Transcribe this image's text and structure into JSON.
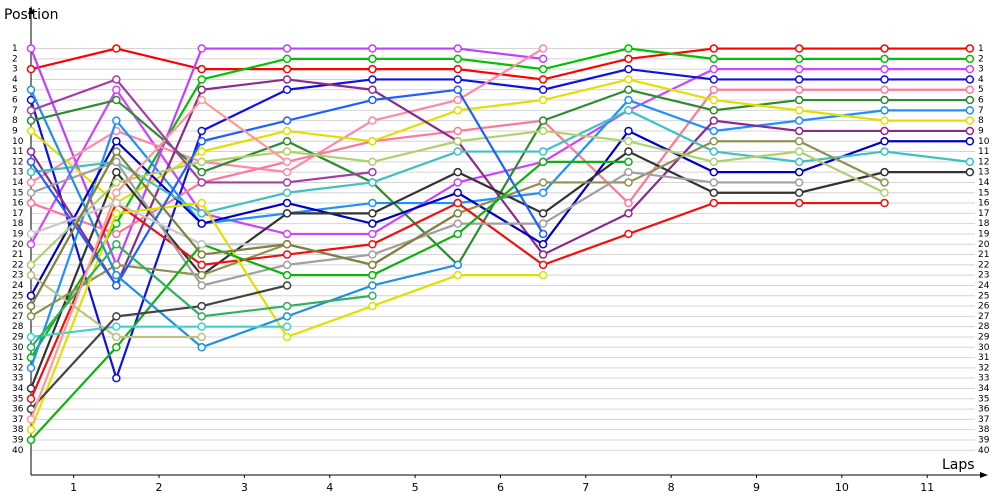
{
  "chart_data": {
    "type": "line",
    "y_label": "Position",
    "x_label": "Laps",
    "x": [
      0,
      1,
      2,
      3,
      4,
      5,
      6,
      7,
      8,
      9,
      10,
      11
    ],
    "xlim": [
      0,
      11.06
    ],
    "xticks": [
      {
        "value": 0.5,
        "label": "1"
      },
      {
        "value": 1.5,
        "label": "2"
      },
      {
        "value": 2.5,
        "label": "3"
      },
      {
        "value": 3.5,
        "label": "4"
      },
      {
        "value": 4.5,
        "label": "5"
      },
      {
        "value": 5.5,
        "label": "6"
      },
      {
        "value": 6.5,
        "label": "7"
      },
      {
        "value": 7.5,
        "label": "8"
      },
      {
        "value": 8.5,
        "label": "9"
      },
      {
        "value": 9.5,
        "label": "10"
      },
      {
        "value": 10.5,
        "label": "11"
      }
    ],
    "ylim": [
      -0.8,
      42.4
    ],
    "yticks": [
      1,
      2,
      3,
      4,
      5,
      6,
      7,
      8,
      9,
      10,
      11,
      12,
      13,
      14,
      15,
      16,
      17,
      18,
      19,
      20,
      21,
      22,
      23,
      24,
      25,
      26,
      27,
      28,
      29,
      30,
      31,
      32,
      33,
      34,
      35,
      36,
      37,
      38,
      39,
      40
    ],
    "grid": true,
    "series": [
      {
        "color": "#ff0000",
        "values": [
          3,
          1,
          3,
          3,
          3,
          3,
          4,
          2,
          1,
          1,
          1,
          1
        ]
      },
      {
        "color": "#00c000",
        "values": [
          31,
          18,
          4,
          2,
          2,
          2,
          3,
          1,
          2,
          2,
          2,
          2
        ]
      },
      {
        "color": "#c040ff",
        "values": [
          1,
          22,
          1,
          1,
          1,
          1,
          2,
          null,
          null,
          null,
          null,
          null
        ]
      },
      {
        "color": "#cc44ff",
        "values": [
          20,
          5,
          17,
          19,
          19,
          14,
          12,
          7,
          3,
          3,
          3,
          3
        ]
      },
      {
        "color": "#1010e0",
        "values": [
          6,
          33,
          9,
          5,
          4,
          4,
          5,
          3,
          4,
          4,
          4,
          4
        ]
      },
      {
        "color": "#ff88aa",
        "values": [
          14,
          9,
          12,
          13,
          8,
          6,
          1,
          null,
          null,
          null,
          null,
          null
        ]
      },
      {
        "color": "#ff7799",
        "values": [
          16,
          19,
          14,
          12,
          10,
          9,
          8,
          16,
          5,
          5,
          5,
          5
        ]
      },
      {
        "color": "#2e8b2e",
        "values": [
          8,
          6,
          13,
          10,
          14,
          22,
          8,
          5,
          7,
          6,
          6,
          6
        ]
      },
      {
        "color": "#1e90ff",
        "values": [
          32,
          8,
          18,
          17,
          16,
          16,
          15,
          6,
          9,
          8,
          7,
          7
        ]
      },
      {
        "color": "#e0e000",
        "values": [
          9,
          16,
          11,
          9,
          10,
          7,
          6,
          4,
          6,
          7,
          8,
          8
        ]
      },
      {
        "color": "#8b2a8b",
        "values": [
          11,
          24,
          5,
          4,
          5,
          10,
          21,
          17,
          8,
          9,
          9,
          9
        ]
      },
      {
        "color": "#0000c0",
        "values": [
          25,
          10,
          18,
          16,
          18,
          15,
          20,
          9,
          13,
          13,
          10,
          10
        ]
      },
      {
        "color": "#40c0c0",
        "values": [
          13,
          12,
          17,
          15,
          14,
          11,
          11,
          7,
          11,
          12,
          11,
          12
        ]
      },
      {
        "color": "#333333",
        "values": [
          34,
          13,
          23,
          17,
          17,
          13,
          17,
          11,
          15,
          15,
          13,
          13
        ]
      },
      {
        "color": "#909050",
        "values": [
          27,
          22,
          23,
          20,
          22,
          17,
          14,
          14,
          10,
          10,
          14,
          null
        ]
      },
      {
        "color": "#b0d070",
        "values": [
          22,
          14,
          12,
          11,
          12,
          10,
          9,
          10,
          12,
          11,
          15,
          null
        ]
      },
      {
        "color": "#ee1111",
        "values": [
          35,
          16,
          22,
          21,
          20,
          16,
          22,
          19,
          16,
          16,
          16,
          null
        ]
      },
      {
        "color": "#a0a0a0",
        "values": [
          15,
          12,
          24,
          22,
          21,
          18,
          18,
          13,
          14,
          14,
          null,
          null
        ]
      },
      {
        "color": "#e0e000",
        "values": [
          38,
          17,
          16,
          29,
          26,
          23,
          23,
          null,
          null,
          null,
          null,
          null
        ]
      },
      {
        "color": "#1e60ff",
        "values": [
          12,
          24,
          10,
          8,
          6,
          5,
          19,
          null,
          null,
          null,
          null,
          null
        ]
      },
      {
        "color": "#10b010",
        "values": [
          39,
          30,
          20,
          23,
          23,
          19,
          12,
          12,
          null,
          null,
          null,
          null
        ]
      },
      {
        "color": "#2090e0",
        "values": [
          5,
          23,
          30,
          27,
          24,
          22,
          null,
          null,
          null,
          null,
          null,
          null
        ]
      },
      {
        "color": "#40d0d0",
        "values": [
          29,
          28,
          28,
          28,
          null,
          null,
          null,
          null,
          null,
          null,
          null,
          null
        ]
      },
      {
        "color": "#c0c080",
        "values": [
          23,
          29,
          29,
          null,
          null,
          null,
          null,
          null,
          null,
          null,
          null,
          null
        ]
      },
      {
        "color": "#444444",
        "values": [
          36,
          27,
          26,
          24,
          null,
          null,
          null,
          null,
          null,
          null,
          null,
          null
        ]
      },
      {
        "color": "#30b060",
        "values": [
          30,
          20,
          27,
          26,
          25,
          null,
          null,
          null,
          null,
          null,
          null,
          null
        ]
      },
      {
        "color": "#ff9999",
        "values": [
          37,
          15,
          6,
          12,
          null,
          null,
          null,
          null,
          null,
          null,
          null,
          null
        ]
      },
      {
        "color": "#a040a0",
        "values": [
          7,
          4,
          14,
          14,
          13,
          null,
          null,
          null,
          null,
          null,
          null,
          null
        ]
      },
      {
        "color": "#c8c8c8",
        "values": [
          19,
          16,
          20,
          20,
          null,
          null,
          null,
          null,
          null,
          null,
          null,
          null
        ]
      },
      {
        "color": "#808040",
        "values": [
          26,
          11,
          21,
          20,
          22,
          17,
          null,
          null,
          null,
          null,
          null,
          null
        ]
      }
    ]
  }
}
